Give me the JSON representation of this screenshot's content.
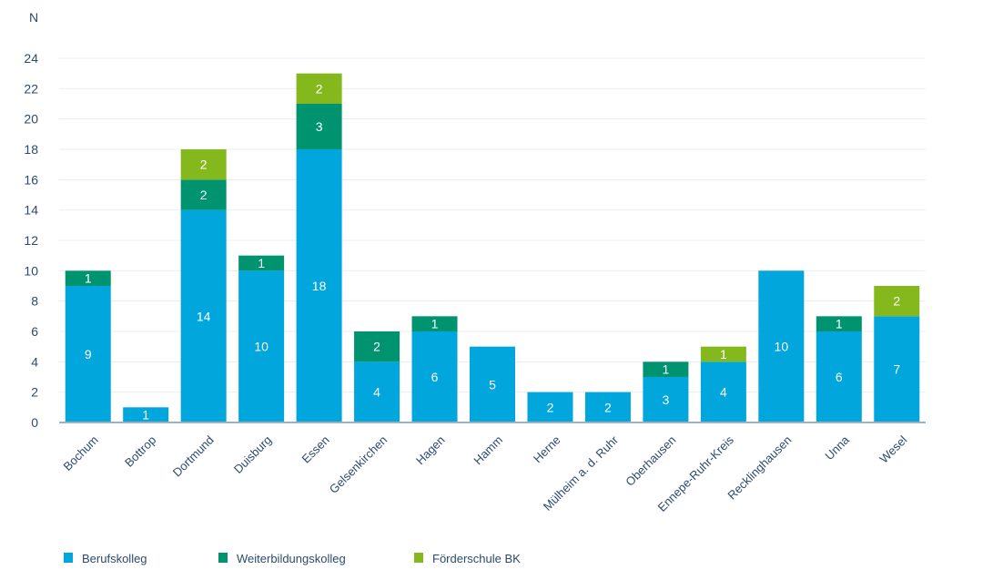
{
  "chart_data": {
    "type": "bar",
    "stacked": true,
    "ylabel": "N",
    "ylim": [
      0,
      24
    ],
    "yticks": [
      0,
      2,
      4,
      6,
      8,
      10,
      12,
      14,
      16,
      18,
      20,
      22,
      24
    ],
    "grid": true,
    "legend_position": "bottom-left",
    "categories": [
      "Bochum",
      "Bottrop",
      "Dortmund",
      "Duisburg",
      "Essen",
      "Gelsenkirchen",
      "Hagen",
      "Hamm",
      "Herne",
      "Mülheim a. d. Ruhr",
      "Oberhausen",
      "Ennepe-Ruhr-Kreis",
      "Recklinghausen",
      "Unna",
      "Wesel"
    ],
    "series": [
      {
        "name": "Berufskolleg",
        "color": "#00a6dc",
        "values": [
          9,
          1,
          14,
          10,
          18,
          4,
          6,
          5,
          2,
          2,
          3,
          4,
          10,
          6,
          7
        ]
      },
      {
        "name": "Weiterbildungskolleg",
        "color": "#009370",
        "values": [
          1,
          0,
          2,
          1,
          3,
          2,
          1,
          0,
          0,
          0,
          1,
          0,
          0,
          1,
          0
        ]
      },
      {
        "name": "Förderschule BK",
        "color": "#85b81c",
        "values": [
          0,
          0,
          2,
          0,
          2,
          0,
          0,
          0,
          0,
          0,
          0,
          1,
          0,
          0,
          2
        ]
      }
    ]
  }
}
